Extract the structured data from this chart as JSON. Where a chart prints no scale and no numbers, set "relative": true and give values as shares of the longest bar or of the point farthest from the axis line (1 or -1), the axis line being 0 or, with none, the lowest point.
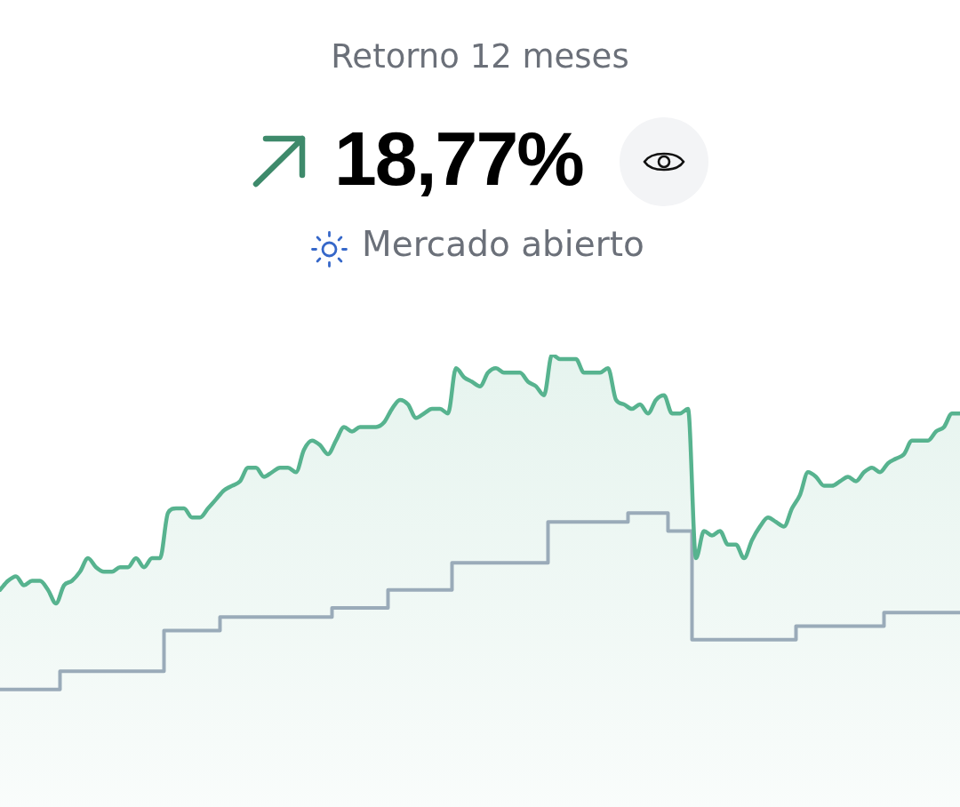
{
  "chart_data": {
    "type": "area",
    "title": "Retorno 12 meses",
    "subtitle": "18,77%",
    "annotations": [
      "Mercado abierto"
    ],
    "relative": true,
    "categories": [
      null,
      null,
      null,
      null,
      null,
      null,
      null,
      null,
      null,
      null,
      null,
      null,
      null,
      null,
      null,
      null,
      null,
      null,
      null,
      null,
      null,
      null,
      null,
      null,
      null,
      null,
      null,
      null,
      null,
      null,
      null,
      null,
      null,
      null,
      null,
      null,
      null,
      null,
      null,
      null,
      null,
      null,
      null,
      null,
      null,
      null,
      null,
      null,
      null,
      null,
      null,
      null,
      null,
      null,
      null,
      null,
      null,
      null,
      null,
      null,
      null,
      null,
      null,
      null,
      null,
      null,
      null,
      null,
      null,
      null,
      null,
      null,
      null,
      null,
      null,
      null,
      null,
      null,
      null,
      null,
      null,
      null,
      null,
      null,
      null,
      null,
      null,
      null,
      null,
      null,
      null,
      null,
      null,
      null,
      null,
      null,
      null,
      null,
      null,
      null,
      null,
      null,
      null,
      null,
      null,
      null,
      null,
      null,
      null,
      null,
      null,
      null,
      null,
      null,
      null,
      null,
      null,
      null,
      null,
      null,
      null
    ],
    "series": [
      {
        "type": "area",
        "color": "#57b38f",
        "values": [
          0.48,
          0.5,
          0.51,
          0.49,
          0.5,
          0.5,
          0.48,
          0.45,
          0.49,
          0.5,
          0.52,
          0.55,
          0.53,
          0.52,
          0.52,
          0.53,
          0.53,
          0.55,
          0.53,
          0.55,
          0.55,
          0.65,
          0.66,
          0.66,
          0.64,
          0.64,
          0.66,
          0.68,
          0.7,
          0.71,
          0.72,
          0.75,
          0.75,
          0.73,
          0.74,
          0.75,
          0.75,
          0.74,
          0.79,
          0.81,
          0.8,
          0.78,
          0.81,
          0.84,
          0.83,
          0.84,
          0.84,
          0.84,
          0.85,
          0.88,
          0.9,
          0.89,
          0.86,
          0.87,
          0.88,
          0.88,
          0.87,
          0.97,
          0.95,
          0.94,
          0.93,
          0.96,
          0.97,
          0.96,
          0.96,
          0.96,
          0.94,
          0.93,
          0.91,
          1.0,
          0.99,
          0.99,
          0.99,
          0.96,
          0.96,
          0.96,
          0.97,
          0.9,
          0.89,
          0.88,
          0.89,
          0.87,
          0.9,
          0.91,
          0.87,
          0.87,
          0.88,
          0.55,
          0.61,
          0.6,
          0.61,
          0.58,
          0.58,
          0.55,
          0.59,
          0.62,
          0.64,
          0.63,
          0.62,
          0.66,
          0.69,
          0.74,
          0.73,
          0.71,
          0.71,
          0.72,
          0.73,
          0.72,
          0.74,
          0.75,
          0.74,
          0.76,
          0.77,
          0.78,
          0.81,
          0.81,
          0.81,
          0.83,
          0.84,
          0.87,
          0.87
        ]
      },
      {
        "type": "step",
        "color": "#9aabb9",
        "values": [
          0.26,
          0.26,
          0.26,
          0.26,
          0.26,
          0.26,
          0.26,
          0.26,
          0.3,
          0.3,
          0.3,
          0.3,
          0.3,
          0.3,
          0.3,
          0.3,
          0.3,
          0.3,
          0.3,
          0.3,
          0.3,
          0.39,
          0.39,
          0.39,
          0.39,
          0.39,
          0.39,
          0.39,
          0.42,
          0.42,
          0.42,
          0.42,
          0.42,
          0.42,
          0.42,
          0.42,
          0.42,
          0.42,
          0.42,
          0.42,
          0.42,
          0.42,
          0.44,
          0.44,
          0.44,
          0.44,
          0.44,
          0.44,
          0.44,
          0.48,
          0.48,
          0.48,
          0.48,
          0.48,
          0.48,
          0.48,
          0.48,
          0.54,
          0.54,
          0.54,
          0.54,
          0.54,
          0.54,
          0.54,
          0.54,
          0.54,
          0.54,
          0.54,
          0.54,
          0.63,
          0.63,
          0.63,
          0.63,
          0.63,
          0.63,
          0.63,
          0.63,
          0.63,
          0.63,
          0.65,
          0.65,
          0.65,
          0.65,
          0.65,
          0.61,
          0.61,
          0.61,
          0.37,
          0.37,
          0.37,
          0.37,
          0.37,
          0.37,
          0.37,
          0.37,
          0.37,
          0.37,
          0.37,
          0.37,
          0.37,
          0.4,
          0.4,
          0.4,
          0.4,
          0.4,
          0.4,
          0.4,
          0.4,
          0.4,
          0.4,
          0.4,
          0.43,
          0.43,
          0.43,
          0.43,
          0.43,
          0.43,
          0.43,
          0.43,
          0.43,
          0.43
        ]
      }
    ]
  }
}
